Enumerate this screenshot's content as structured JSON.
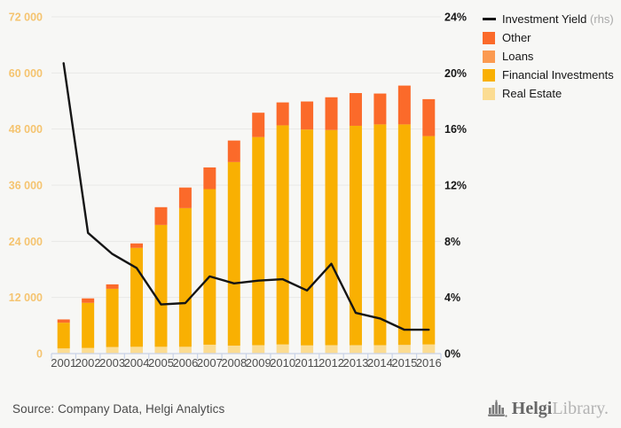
{
  "chart_data": {
    "type": "bar+line",
    "title": "",
    "categories": [
      "2001",
      "2002",
      "2003",
      "2004",
      "2005",
      "2006",
      "2007",
      "2008",
      "2009",
      "2010",
      "2011",
      "2012",
      "2013",
      "2014",
      "2015",
      "2016"
    ],
    "stack_order_note": "bars stacked bottom to top in series order",
    "series": [
      {
        "name": "Real Estate",
        "type": "bar",
        "axis": "left",
        "color": "#fbdc92",
        "values": [
          1100,
          1200,
          1400,
          1450,
          1450,
          1450,
          1900,
          1700,
          1800,
          1950,
          1750,
          1800,
          1800,
          1800,
          1850,
          1950
        ]
      },
      {
        "name": "Financial Investments",
        "type": "bar",
        "axis": "left",
        "color": "#f9b002",
        "values": [
          5500,
          9650,
          12450,
          21150,
          26050,
          29650,
          33250,
          39250,
          44500,
          46850,
          46150,
          46000,
          46900,
          47200,
          47150,
          44550
        ]
      },
      {
        "name": "Loans",
        "type": "bar",
        "axis": "left",
        "color": "#fb9a51",
        "values": [
          0,
          0,
          0,
          0,
          0,
          0,
          0,
          0,
          0,
          0,
          0,
          0,
          0,
          0,
          0,
          0
        ]
      },
      {
        "name": "Other",
        "type": "bar",
        "axis": "left",
        "color": "#fb6a2a",
        "values": [
          700,
          950,
          950,
          950,
          3800,
          4400,
          4650,
          4600,
          5200,
          4900,
          6000,
          7000,
          7000,
          6600,
          8300,
          7900
        ]
      },
      {
        "name": "Investment Yield",
        "type": "line",
        "axis": "right",
        "color": "#151515",
        "values": [
          20.7,
          8.6,
          7.1,
          6.1,
          3.5,
          3.6,
          5.5,
          5.0,
          5.2,
          5.3,
          4.5,
          6.4,
          2.9,
          2.5,
          1.7,
          1.7
        ]
      }
    ],
    "left_axis": {
      "min": 0,
      "max": 72000,
      "tick_labels": [
        "0",
        "12 000",
        "24 000",
        "36 000",
        "48 000",
        "60 000",
        "72 000"
      ],
      "label_color": "#f5c470"
    },
    "right_axis": {
      "min": 0,
      "max": 24,
      "tick_labels": [
        "0%",
        "4%",
        "8%",
        "12%",
        "16%",
        "20%",
        "24%"
      ],
      "label_color": "#161616"
    },
    "x_label_color": "#4d4d4d",
    "grid": true,
    "gridline_color": "#e8e8e6",
    "axis_line_color": "#c9d3e8",
    "legend_position": "top-right"
  },
  "legend": {
    "items": [
      {
        "label": "Investment Yield",
        "suffix": " (rhs)",
        "swatch": "line",
        "color": "#151515"
      },
      {
        "label": "Other",
        "suffix": "",
        "swatch": "square",
        "color": "#fb6a2a"
      },
      {
        "label": "Loans",
        "suffix": "",
        "swatch": "square",
        "color": "#fb9a51"
      },
      {
        "label": "Financial Investments",
        "suffix": "",
        "swatch": "square",
        "color": "#f9b002"
      },
      {
        "label": "Real Estate",
        "suffix": "",
        "swatch": "square",
        "color": "#fbdc92"
      }
    ]
  },
  "footer": {
    "source": "Source: Company Data, Helgi Analytics",
    "logo_bold": "Helgi",
    "logo_light": "Library."
  }
}
